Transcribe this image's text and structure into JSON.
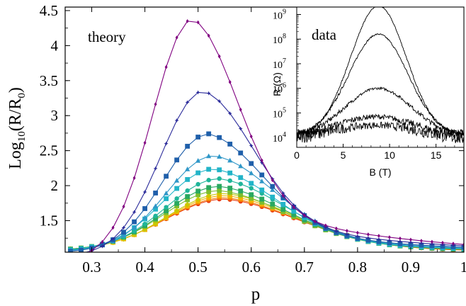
{
  "chart_data": [
    {
      "type": "line",
      "annotation": "theory",
      "xlabel": "p",
      "ylabel": "Log10(R/R0)",
      "xlim": [
        0.25,
        1.0
      ],
      "ylim": [
        1.05,
        4.55
      ],
      "xticks": [
        "0.3",
        "0.4",
        "0.5",
        "0.6",
        "0.7",
        "0.8",
        "0.9",
        "1"
      ],
      "yticks": [
        "1.5",
        "2",
        "2.5",
        "3",
        "3.5",
        "4",
        "4.5"
      ],
      "grid": false,
      "curve_model": {
        "shape": "skewed peak",
        "p_min": 0.26,
        "p_max": 1.0,
        "step": 0.02,
        "p_start_of_rise": 0.27
      },
      "series": [
        {
          "color": "#800080",
          "marker": "diamond-small",
          "peak_x": 0.49,
          "peak_y": 4.38,
          "start_y": 0.98,
          "end_y": 1.16,
          "w_left": 0.075,
          "w_right": 0.085,
          "floor": 1.16
        },
        {
          "color": "#2a2a9a",
          "marker": "star-small",
          "peak_x": 0.51,
          "peak_y": 3.35,
          "start_y": 1.02,
          "end_y": 1.14,
          "w_left": 0.08,
          "w_right": 0.095,
          "floor": 1.14
        },
        {
          "color": "#1f5faa",
          "marker": "square",
          "peak_x": 0.52,
          "peak_y": 2.74,
          "start_y": 1.07,
          "end_y": 1.12,
          "w_left": 0.085,
          "w_right": 0.105,
          "floor": 1.12
        },
        {
          "color": "#2f97c8",
          "marker": "triangle",
          "peak_x": 0.53,
          "peak_y": 2.43,
          "start_y": 1.08,
          "end_y": 1.11,
          "w_left": 0.09,
          "w_right": 0.115,
          "floor": 1.11
        },
        {
          "color": "#22b4c8",
          "marker": "square",
          "peak_x": 0.53,
          "peak_y": 2.24,
          "start_y": 1.09,
          "end_y": 1.1,
          "w_left": 0.095,
          "w_right": 0.12,
          "floor": 1.1
        },
        {
          "color": "#1fb59a",
          "marker": "circle",
          "peak_x": 0.54,
          "peak_y": 2.1,
          "start_y": 1.09,
          "end_y": 1.1,
          "w_left": 0.1,
          "w_right": 0.125,
          "floor": 1.1
        },
        {
          "color": "#29a860",
          "marker": "square",
          "peak_x": 0.54,
          "peak_y": 1.99,
          "start_y": 1.1,
          "end_y": 1.09,
          "w_left": 0.102,
          "w_right": 0.13,
          "floor": 1.09
        },
        {
          "color": "#7cbd2e",
          "marker": "square",
          "peak_x": 0.54,
          "peak_y": 1.93,
          "start_y": 1.1,
          "end_y": 1.09,
          "w_left": 0.104,
          "w_right": 0.132,
          "floor": 1.09
        },
        {
          "color": "#c8c800",
          "marker": "diamond",
          "peak_x": 0.55,
          "peak_y": 1.89,
          "start_y": 1.1,
          "end_y": 1.09,
          "w_left": 0.106,
          "w_right": 0.135,
          "floor": 1.09
        },
        {
          "color": "#f2b200",
          "marker": "square",
          "peak_x": 0.55,
          "peak_y": 1.86,
          "start_y": 1.1,
          "end_y": 1.09,
          "w_left": 0.108,
          "w_right": 0.137,
          "floor": 1.09
        },
        {
          "color": "#f57a00",
          "marker": "triangle",
          "peak_x": 0.55,
          "peak_y": 1.83,
          "start_y": 1.1,
          "end_y": 1.08,
          "w_left": 0.11,
          "w_right": 0.139,
          "floor": 1.08
        },
        {
          "color": "#e8380f",
          "marker": "circle",
          "peak_x": 0.55,
          "peak_y": 1.81,
          "start_y": 1.1,
          "end_y": 1.08,
          "w_left": 0.112,
          "w_right": 0.141,
          "floor": 1.08
        }
      ]
    },
    {
      "type": "line",
      "annotation": "data",
      "xlabel": "B (T)",
      "ylabel": "R (Ω)",
      "xlim": [
        0,
        18
      ],
      "y_scale": "log",
      "ylim": [
        4000,
        2000000000
      ],
      "xticks": [
        "0",
        "5",
        "10",
        "15"
      ],
      "yticks": [
        {
          "base": "10",
          "exp": "9",
          "value": 1000000000
        },
        {
          "base": "10",
          "exp": "8",
          "value": 100000000
        },
        {
          "base": "10",
          "exp": "7",
          "value": 10000000
        },
        {
          "base": "10",
          "exp": "6",
          "value": 1000000
        },
        {
          "base": "10",
          "exp": "5",
          "value": 100000
        },
        {
          "base": "10",
          "exp": "4",
          "value": 10000
        }
      ],
      "grid": false,
      "series": [
        {
          "color": "#000000",
          "peak_x": 8.8,
          "peak_log": 9.35,
          "base_log": 4.05,
          "width": 3.0,
          "noise": 0.02
        },
        {
          "color": "#000000",
          "peak_x": 8.8,
          "peak_log": 8.2,
          "base_log": 4.05,
          "width": 3.2,
          "noise": 0.03
        },
        {
          "color": "#000000",
          "peak_x": 8.8,
          "peak_log": 6.0,
          "base_log": 4.05,
          "width": 3.6,
          "noise": 0.05
        },
        {
          "color": "#000000",
          "peak_x": 8.5,
          "peak_log": 4.85,
          "base_log": 4.0,
          "width": 4.2,
          "noise": 0.1
        },
        {
          "color": "#000000",
          "peak_x": 8.5,
          "peak_log": 4.5,
          "base_log": 3.95,
          "width": 4.5,
          "noise": 0.14
        }
      ]
    }
  ]
}
